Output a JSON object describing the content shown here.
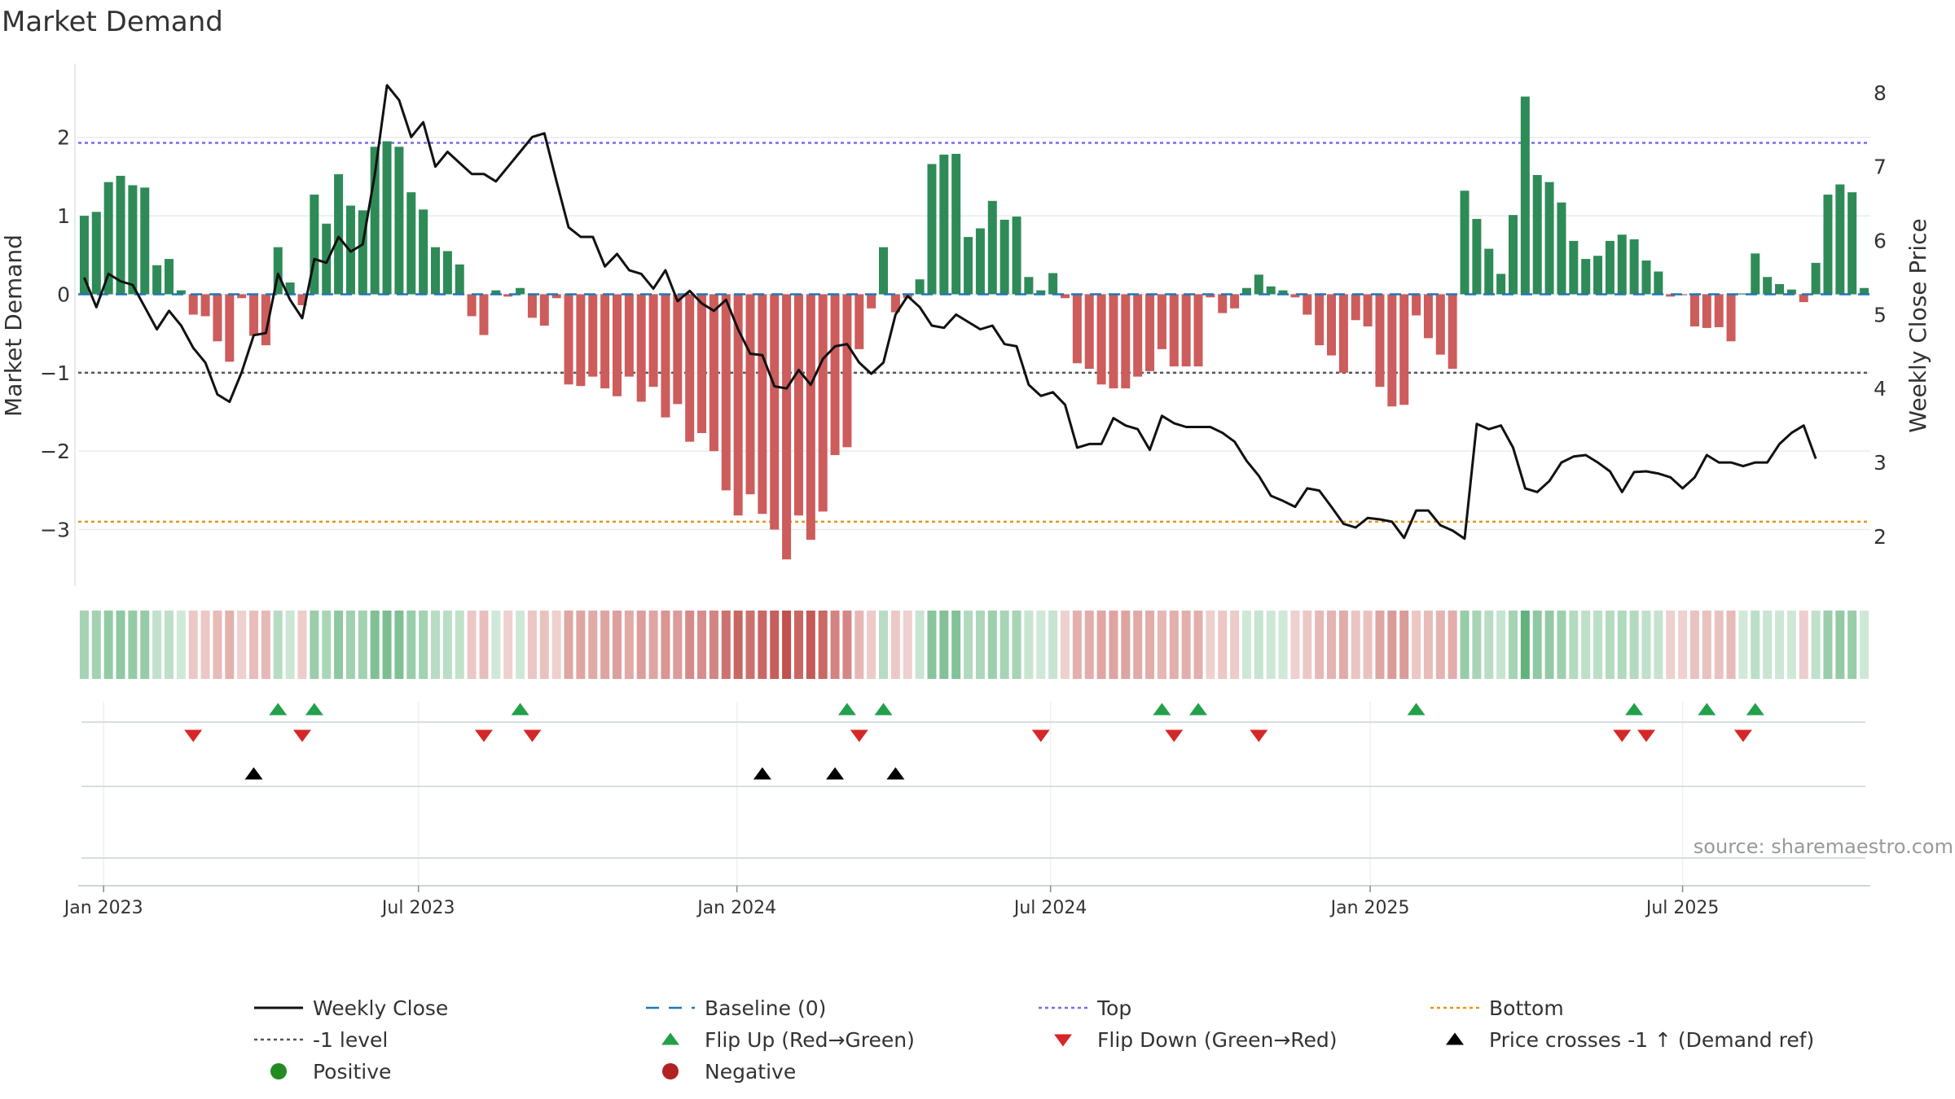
{
  "title": "Market Demand",
  "source": "source: sharemaestro.com",
  "colors": {
    "positive": "#2e8b57",
    "negative": "#cd5c5c",
    "price": "#111111",
    "baseline": "#1f77b4",
    "top": "#7b68ee",
    "bottom": "#e69512",
    "minus_one": "#555555",
    "flip_up": "#22a04a",
    "flip_down": "#d62728",
    "cross": "#000000",
    "grid": "#e8ebee"
  },
  "chart_data": {
    "type": "bar",
    "title": "Market Demand",
    "ylabel": "Market Demand",
    "y2label": "Weekly Close Price",
    "ylim": [
      -3.7,
      2.9
    ],
    "y2lim": [
      1.35,
      8.35
    ],
    "yticks": [
      -3,
      -2,
      -1,
      0,
      1,
      2
    ],
    "ytick_labels": [
      "−3",
      "−2",
      "−1",
      "0",
      "1",
      "2"
    ],
    "y2ticks": [
      2,
      3,
      4,
      5,
      6,
      7,
      8
    ],
    "y2tick_labels": [
      "2",
      "3",
      "4",
      "5",
      "6",
      "7",
      "8"
    ],
    "x_start_week": 0,
    "x_end_week": 144,
    "xticks": [
      {
        "label": "Jan 2023",
        "week": 1.6
      },
      {
        "label": "Jul 2023",
        "week": 27.6
      },
      {
        "label": "Jan 2024",
        "week": 53.9
      },
      {
        "label": "Jul 2024",
        "week": 79.8
      },
      {
        "label": "Jan 2025",
        "week": 106.2
      },
      {
        "label": "Jul 2025",
        "week": 132.0
      }
    ],
    "levels": {
      "top": 1.93,
      "bottom": -2.9,
      "minus_one": -1.0,
      "baseline": 0
    },
    "demand": [
      1.0,
      1.05,
      1.43,
      1.51,
      1.39,
      1.36,
      0.37,
      0.45,
      0.05,
      -0.26,
      -0.28,
      -0.6,
      -0.86,
      -0.05,
      -0.53,
      -0.65,
      0.6,
      0.15,
      -0.14,
      1.27,
      0.9,
      1.53,
      1.13,
      1.07,
      1.88,
      1.95,
      1.88,
      1.3,
      1.08,
      0.6,
      0.55,
      0.38,
      -0.28,
      -0.52,
      0.05,
      -0.03,
      0.08,
      -0.3,
      -0.4,
      -0.05,
      -1.15,
      -1.17,
      -1.05,
      -1.2,
      -1.3,
      -1.05,
      -1.37,
      -1.18,
      -1.57,
      -1.4,
      -1.88,
      -1.77,
      -2.0,
      -2.5,
      -2.82,
      -2.55,
      -2.8,
      -3.0,
      -3.38,
      -2.82,
      -3.13,
      -2.77,
      -2.05,
      -1.95,
      -0.7,
      -0.18,
      0.6,
      -0.23,
      -0.05,
      0.19,
      1.66,
      1.78,
      1.79,
      0.73,
      0.84,
      1.19,
      0.95,
      0.99,
      0.22,
      0.05,
      0.27,
      -0.05,
      -0.88,
      -0.95,
      -1.15,
      -1.2,
      -1.2,
      -1.05,
      -0.98,
      -0.7,
      -0.92,
      -0.92,
      -0.92,
      -0.04,
      -0.24,
      -0.18,
      0.08,
      0.25,
      0.1,
      0.05,
      -0.04,
      -0.26,
      -0.65,
      -0.78,
      -1.0,
      -0.33,
      -0.41,
      -1.18,
      -1.43,
      -1.41,
      -0.27,
      -0.56,
      -0.77,
      -0.95,
      1.32,
      0.96,
      0.58,
      0.26,
      1.01,
      2.52,
      1.52,
      1.43,
      1.17,
      0.68,
      0.45,
      0.49,
      0.68,
      0.76,
      0.7,
      0.43,
      0.29,
      -0.03,
      -0.01,
      -0.41,
      -0.43,
      -0.42,
      -0.6,
      0.01,
      0.52,
      0.22,
      0.13,
      0.06,
      -0.1,
      0.4,
      1.27,
      1.4,
      1.3,
      0.08
    ],
    "price": [
      5.5,
      5.1,
      5.55,
      5.45,
      5.4,
      5.1,
      4.8,
      5.05,
      4.85,
      4.55,
      4.35,
      3.92,
      3.82,
      4.22,
      4.72,
      4.75,
      5.55,
      5.2,
      4.95,
      5.75,
      5.7,
      6.05,
      5.85,
      5.95,
      6.9,
      8.1,
      7.9,
      7.4,
      7.6,
      7.0,
      7.2,
      7.05,
      6.9,
      6.9,
      6.8,
      7.0,
      7.2,
      7.4,
      7.45,
      6.8,
      6.18,
      6.05,
      6.05,
      5.65,
      5.82,
      5.6,
      5.55,
      5.35,
      5.6,
      5.18,
      5.32,
      5.15,
      5.05,
      5.2,
      4.8,
      4.47,
      4.45,
      4.03,
      4.0,
      4.25,
      4.05,
      4.4,
      4.57,
      4.6,
      4.35,
      4.2,
      4.35,
      5.0,
      5.25,
      5.1,
      4.85,
      4.82,
      5.0,
      4.9,
      4.8,
      4.85,
      4.6,
      4.57,
      4.05,
      3.9,
      3.95,
      3.78,
      3.2,
      3.25,
      3.25,
      3.6,
      3.5,
      3.45,
      3.17,
      3.63,
      3.53,
      3.48,
      3.48,
      3.48,
      3.4,
      3.28,
      3.02,
      2.82,
      2.55,
      2.48,
      2.4,
      2.65,
      2.62,
      2.4,
      2.17,
      2.12,
      2.25,
      2.23,
      2.2,
      1.98,
      2.35,
      2.35,
      2.15,
      2.08,
      1.97,
      3.52,
      3.45,
      3.5,
      3.2,
      2.65,
      2.6,
      2.75,
      3.0,
      3.08,
      3.1,
      3.0,
      2.88,
      2.6,
      2.87,
      2.88,
      2.85,
      2.8,
      2.65,
      2.8,
      3.1,
      3.0,
      3.0,
      2.95,
      3.0,
      3.0,
      3.25,
      3.4,
      3.5,
      3.05
    ],
    "flip_up_weeks": [
      16,
      19,
      36,
      63,
      66,
      89,
      92,
      110,
      128,
      134,
      138
    ],
    "flip_down_weeks": [
      9,
      18,
      33,
      37,
      64,
      79,
      90,
      97,
      127,
      129,
      137
    ],
    "price_cross_weeks": [
      14,
      56,
      62,
      67
    ],
    "demand_color_scale": "green for positive demand, red for negative, intensity proportional to magnitude"
  },
  "legend": {
    "items": [
      {
        "label": "Weekly Close",
        "kind": "line"
      },
      {
        "label": "Baseline (0)",
        "kind": "dash"
      },
      {
        "label": "Top",
        "kind": "dot-purple"
      },
      {
        "label": "Bottom",
        "kind": "dot-orange"
      },
      {
        "label": "-1 level",
        "kind": "dot-gray"
      },
      {
        "label": "Flip Up (Red→Green)",
        "kind": "tri-up-green"
      },
      {
        "label": "Flip Down (Green→Red)",
        "kind": "tri-down-red"
      },
      {
        "label": "Price crosses -1 ↑ (Demand ref)",
        "kind": "tri-up-black"
      },
      {
        "label": "Positive",
        "kind": "dot-green"
      },
      {
        "label": "Negative",
        "kind": "dot-red"
      }
    ]
  }
}
